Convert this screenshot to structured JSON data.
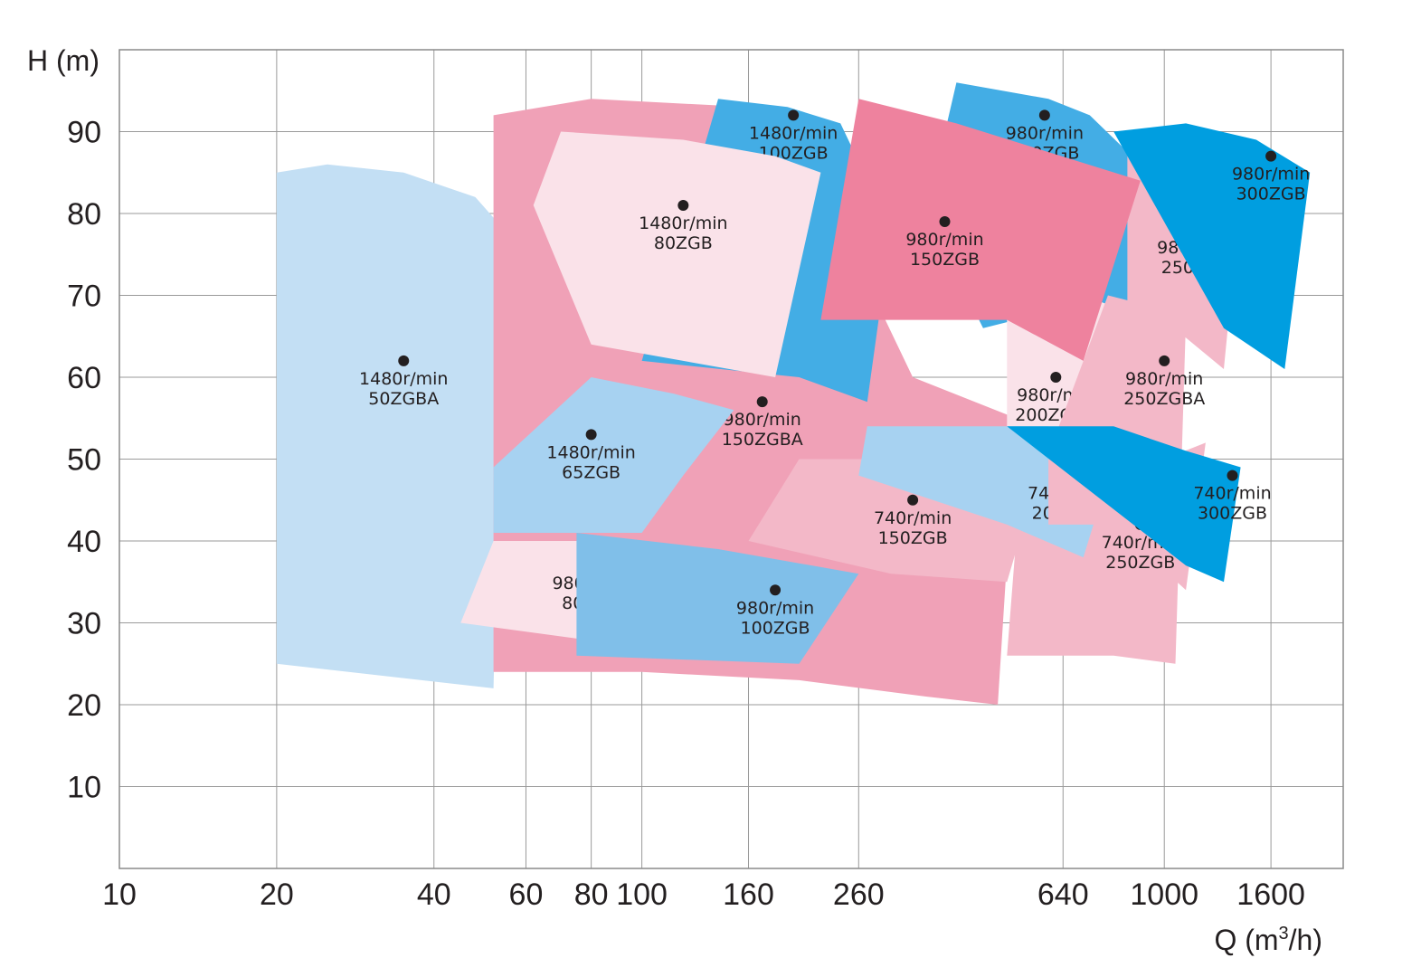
{
  "chart_data": {
    "type": "area",
    "title": "",
    "xlabel": "Q (m",
    "xlabel_sup": "3",
    "xlabel_tail": "/h)",
    "ylabel": "H (m)",
    "x_scale": "log",
    "xlim": [
      10,
      2200
    ],
    "ylim": [
      0,
      100
    ],
    "grid": true,
    "x_ticks": [
      {
        "value": 10,
        "label": "10"
      },
      {
        "value": 20,
        "label": "20"
      },
      {
        "value": 40,
        "label": "40"
      },
      {
        "value": 60,
        "label": "60"
      },
      {
        "value": 80,
        "label": "80"
      },
      {
        "value": 100,
        "label": "100"
      },
      {
        "value": 160,
        "label": "160"
      },
      {
        "value": 260,
        "label": "260"
      },
      {
        "value": 640,
        "label": "640"
      },
      {
        "value": 1000,
        "label": "1000"
      },
      {
        "value": 1600,
        "label": "1600"
      }
    ],
    "y_ticks": [
      {
        "value": 10,
        "label": "10"
      },
      {
        "value": 20,
        "label": "20"
      },
      {
        "value": 30,
        "label": "30"
      },
      {
        "value": 40,
        "label": "40"
      },
      {
        "value": 50,
        "label": "50"
      },
      {
        "value": 60,
        "label": "60"
      },
      {
        "value": 70,
        "label": "70"
      },
      {
        "value": 80,
        "label": "80"
      },
      {
        "value": 90,
        "label": "90"
      }
    ],
    "regions": [
      {
        "speed": "1480r/min",
        "model": "50ZGBA",
        "color": "#c3dff4",
        "point": [
          35,
          62
        ],
        "polygon": [
          [
            20,
            85
          ],
          [
            25,
            86
          ],
          [
            35,
            85
          ],
          [
            48,
            82
          ],
          [
            80,
            66
          ],
          [
            52,
            48
          ],
          [
            53,
            44
          ],
          [
            52,
            22
          ],
          [
            20,
            25
          ]
        ]
      },
      {
        "speed": "980r/min",
        "model": "150ZGBA",
        "color": "#f0a1b7",
        "point": [
          170,
          57
        ],
        "polygon": [
          [
            52,
            92
          ],
          [
            80,
            94
          ],
          [
            160,
            93
          ],
          [
            200,
            89
          ],
          [
            330,
            60
          ],
          [
            520,
            55
          ],
          [
            480,
            20
          ],
          [
            350,
            21
          ],
          [
            200,
            23
          ],
          [
            100,
            24
          ],
          [
            52,
            24
          ]
        ]
      },
      {
        "speed": "1480r/min",
        "model": "100ZGB",
        "color": "#43ade5",
        "point": [
          195,
          92
        ],
        "polygon": [
          [
            140,
            94
          ],
          [
            190,
            93
          ],
          [
            240,
            91
          ],
          [
            300,
            78
          ],
          [
            270,
            57
          ],
          [
            200,
            60
          ],
          [
            100,
            62
          ]
        ]
      },
      {
        "speed": "1480r/min",
        "model": "80ZGB",
        "color": "#fae2e9",
        "point": [
          120,
          81
        ],
        "polygon": [
          [
            70,
            90
          ],
          [
            120,
            89
          ],
          [
            180,
            87
          ],
          [
            220,
            85
          ],
          [
            180,
            60
          ],
          [
            80,
            64
          ],
          [
            62,
            81
          ]
        ]
      },
      {
        "speed": "980r/min",
        "model": "200ZGB",
        "color": "#43ade5",
        "point": [
          590,
          92
        ],
        "polygon": [
          [
            400,
            96
          ],
          [
            600,
            94
          ],
          [
            720,
            92
          ],
          [
            900,
            86
          ],
          [
            850,
            66
          ],
          [
            600,
            68
          ],
          [
            450,
            66
          ],
          [
            350,
            80
          ]
        ]
      },
      {
        "speed": "980r/min",
        "model": "200ZGBA",
        "color": "#fae2e9",
        "point": [
          620,
          60
        ],
        "polygon": [
          [
            500,
            68
          ],
          [
            700,
            70
          ],
          [
            850,
            68
          ],
          [
            820,
            48
          ],
          [
            700,
            44
          ],
          [
            500,
            44
          ]
        ]
      },
      {
        "speed": "980r/min",
        "model": "250ZGB",
        "color": "#f3b8c8",
        "point": [
          1150,
          78
        ],
        "polygon": [
          [
            850,
            90
          ],
          [
            1100,
            86
          ],
          [
            1400,
            82
          ],
          [
            1300,
            61
          ],
          [
            1000,
            67
          ],
          [
            850,
            66
          ]
        ]
      },
      {
        "speed": "980r/min",
        "model": "250ZGBA",
        "color": "#f3b8c8",
        "point": [
          1000,
          62
        ],
        "polygon": [
          [
            780,
            70
          ],
          [
            900,
            69
          ],
          [
            1100,
            67
          ],
          [
            1050,
            25
          ],
          [
            800,
            26
          ],
          [
            500,
            26
          ],
          [
            520,
            40
          ]
        ]
      },
      {
        "speed": "980r/min",
        "model": "300ZGB",
        "color": "#009ee0",
        "point": [
          1600,
          87
        ],
        "polygon": [
          [
            800,
            90
          ],
          [
            1100,
            91
          ],
          [
            1500,
            89
          ],
          [
            1900,
            85
          ],
          [
            1700,
            61
          ],
          [
            1300,
            66
          ]
        ]
      },
      {
        "speed": "980r/min",
        "model": "150ZGB",
        "color": "#ee829e",
        "point": [
          380,
          79
        ],
        "polygon": [
          [
            260,
            94
          ],
          [
            400,
            91
          ],
          [
            900,
            84
          ],
          [
            700,
            62
          ],
          [
            500,
            67
          ],
          [
            220,
            67
          ]
        ]
      },
      {
        "speed": "1480r/min",
        "model": "65ZGB",
        "color": "#a7d2f1",
        "point": [
          80,
          53
        ],
        "polygon": [
          [
            52,
            49
          ],
          [
            80,
            60
          ],
          [
            115,
            58
          ],
          [
            150,
            56
          ],
          [
            120,
            48
          ],
          [
            100,
            41
          ],
          [
            52,
            41
          ]
        ]
      },
      {
        "speed": "740r/min",
        "model": "150ZGB",
        "color": "#f3b8c8",
        "point": [
          330,
          45
        ],
        "polygon": [
          [
            200,
            50
          ],
          [
            300,
            50
          ],
          [
            400,
            50
          ],
          [
            480,
            52
          ],
          [
            550,
            44
          ],
          [
            500,
            35
          ],
          [
            300,
            36
          ],
          [
            160,
            40
          ]
        ]
      },
      {
        "speed": "740r/min",
        "model": "200ZGB",
        "color": "#a7d2f1",
        "point": [
          650,
          48
        ],
        "polygon": [
          [
            270,
            54
          ],
          [
            400,
            54
          ],
          [
            600,
            54
          ],
          [
            800,
            50
          ],
          [
            700,
            38
          ],
          [
            500,
            42
          ],
          [
            260,
            48
          ]
        ]
      },
      {
        "speed": "740r/min",
        "model": "250ZGB",
        "color": "#f3b8c8",
        "point": [
          900,
          42
        ],
        "polygon": [
          [
            600,
            52
          ],
          [
            800,
            51
          ],
          [
            1000,
            50
          ],
          [
            1200,
            52
          ],
          [
            1100,
            34
          ],
          [
            800,
            42
          ],
          [
            600,
            42
          ]
        ]
      },
      {
        "speed": "740r/min",
        "model": "300ZGB",
        "color": "#009ee0",
        "point": [
          1350,
          48
        ],
        "polygon": [
          [
            500,
            54
          ],
          [
            800,
            54
          ],
          [
            1100,
            51
          ],
          [
            1400,
            49
          ],
          [
            1300,
            35
          ],
          [
            1100,
            37
          ]
        ]
      },
      {
        "speed": "980r/min",
        "model": "80ZGB",
        "color": "#fae2e9",
        "point": [
          80,
          37
        ],
        "polygon": [
          [
            52,
            40
          ],
          [
            80,
            40
          ],
          [
            120,
            38
          ],
          [
            140,
            38
          ],
          [
            100,
            27
          ],
          [
            45,
            30
          ]
        ]
      },
      {
        "speed": "980r/min",
        "model": "100ZGB",
        "color": "#80bfe9",
        "point": [
          180,
          34
        ],
        "polygon": [
          [
            75,
            41
          ],
          [
            140,
            39
          ],
          [
            260,
            36
          ],
          [
            200,
            25
          ],
          [
            75,
            26
          ]
        ]
      }
    ]
  }
}
